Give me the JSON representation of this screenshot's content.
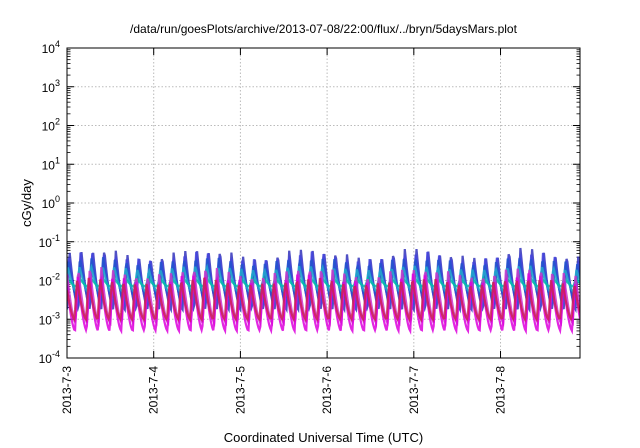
{
  "chart_data": {
    "type": "line",
    "title": "/data/run/goesPlots/archive/2013-07-08/22:00/flux/../bryn/5daysMars.plot",
    "xlabel": "Coordinated Universal Time (UTC)",
    "ylabel": "cGy/day",
    "yscale": "log",
    "ylim": [
      0.0001,
      10000
    ],
    "xlim": [
      "2013-07-03 00:00",
      "2013-07-08 22:00"
    ],
    "grid": true,
    "x_ticks": [
      "2013-7-3",
      "2013-7-4",
      "2013-7-5",
      "2013-7-6",
      "2013-7-7",
      "2013-7-8"
    ],
    "y_ticks": [
      {
        "base": "10",
        "exp": "-4"
      },
      {
        "base": "10",
        "exp": "-3"
      },
      {
        "base": "10",
        "exp": "-2"
      },
      {
        "base": "10",
        "exp": "-1"
      },
      {
        "base": "10",
        "exp": "0"
      },
      {
        "base": "10",
        "exp": "1"
      },
      {
        "base": "10",
        "exp": "2"
      },
      {
        "base": "10",
        "exp": "3"
      },
      {
        "base": "10",
        "exp": "4"
      }
    ],
    "oscillation_period_hours": 3.2,
    "series": [
      {
        "color": "#3333bb",
        "peak": 0.055,
        "trough": 0.0018
      },
      {
        "color": "#4444dd",
        "peak": 0.045,
        "trough": 0.0025
      },
      {
        "color": "#2255cc",
        "peak": 0.035,
        "trough": 0.0035
      },
      {
        "color": "#22aacc",
        "peak": 0.022,
        "trough": 0.005
      },
      {
        "color": "#00bbaa",
        "peak": 0.012,
        "trough": 0.007
      },
      {
        "color": "#cc33cc",
        "peak": 0.018,
        "trough": 0.0008
      },
      {
        "color": "#dd00dd",
        "peak": 0.012,
        "trough": 0.0005
      },
      {
        "color": "#cc2255",
        "peak": 0.01,
        "trough": 0.001
      }
    ]
  }
}
